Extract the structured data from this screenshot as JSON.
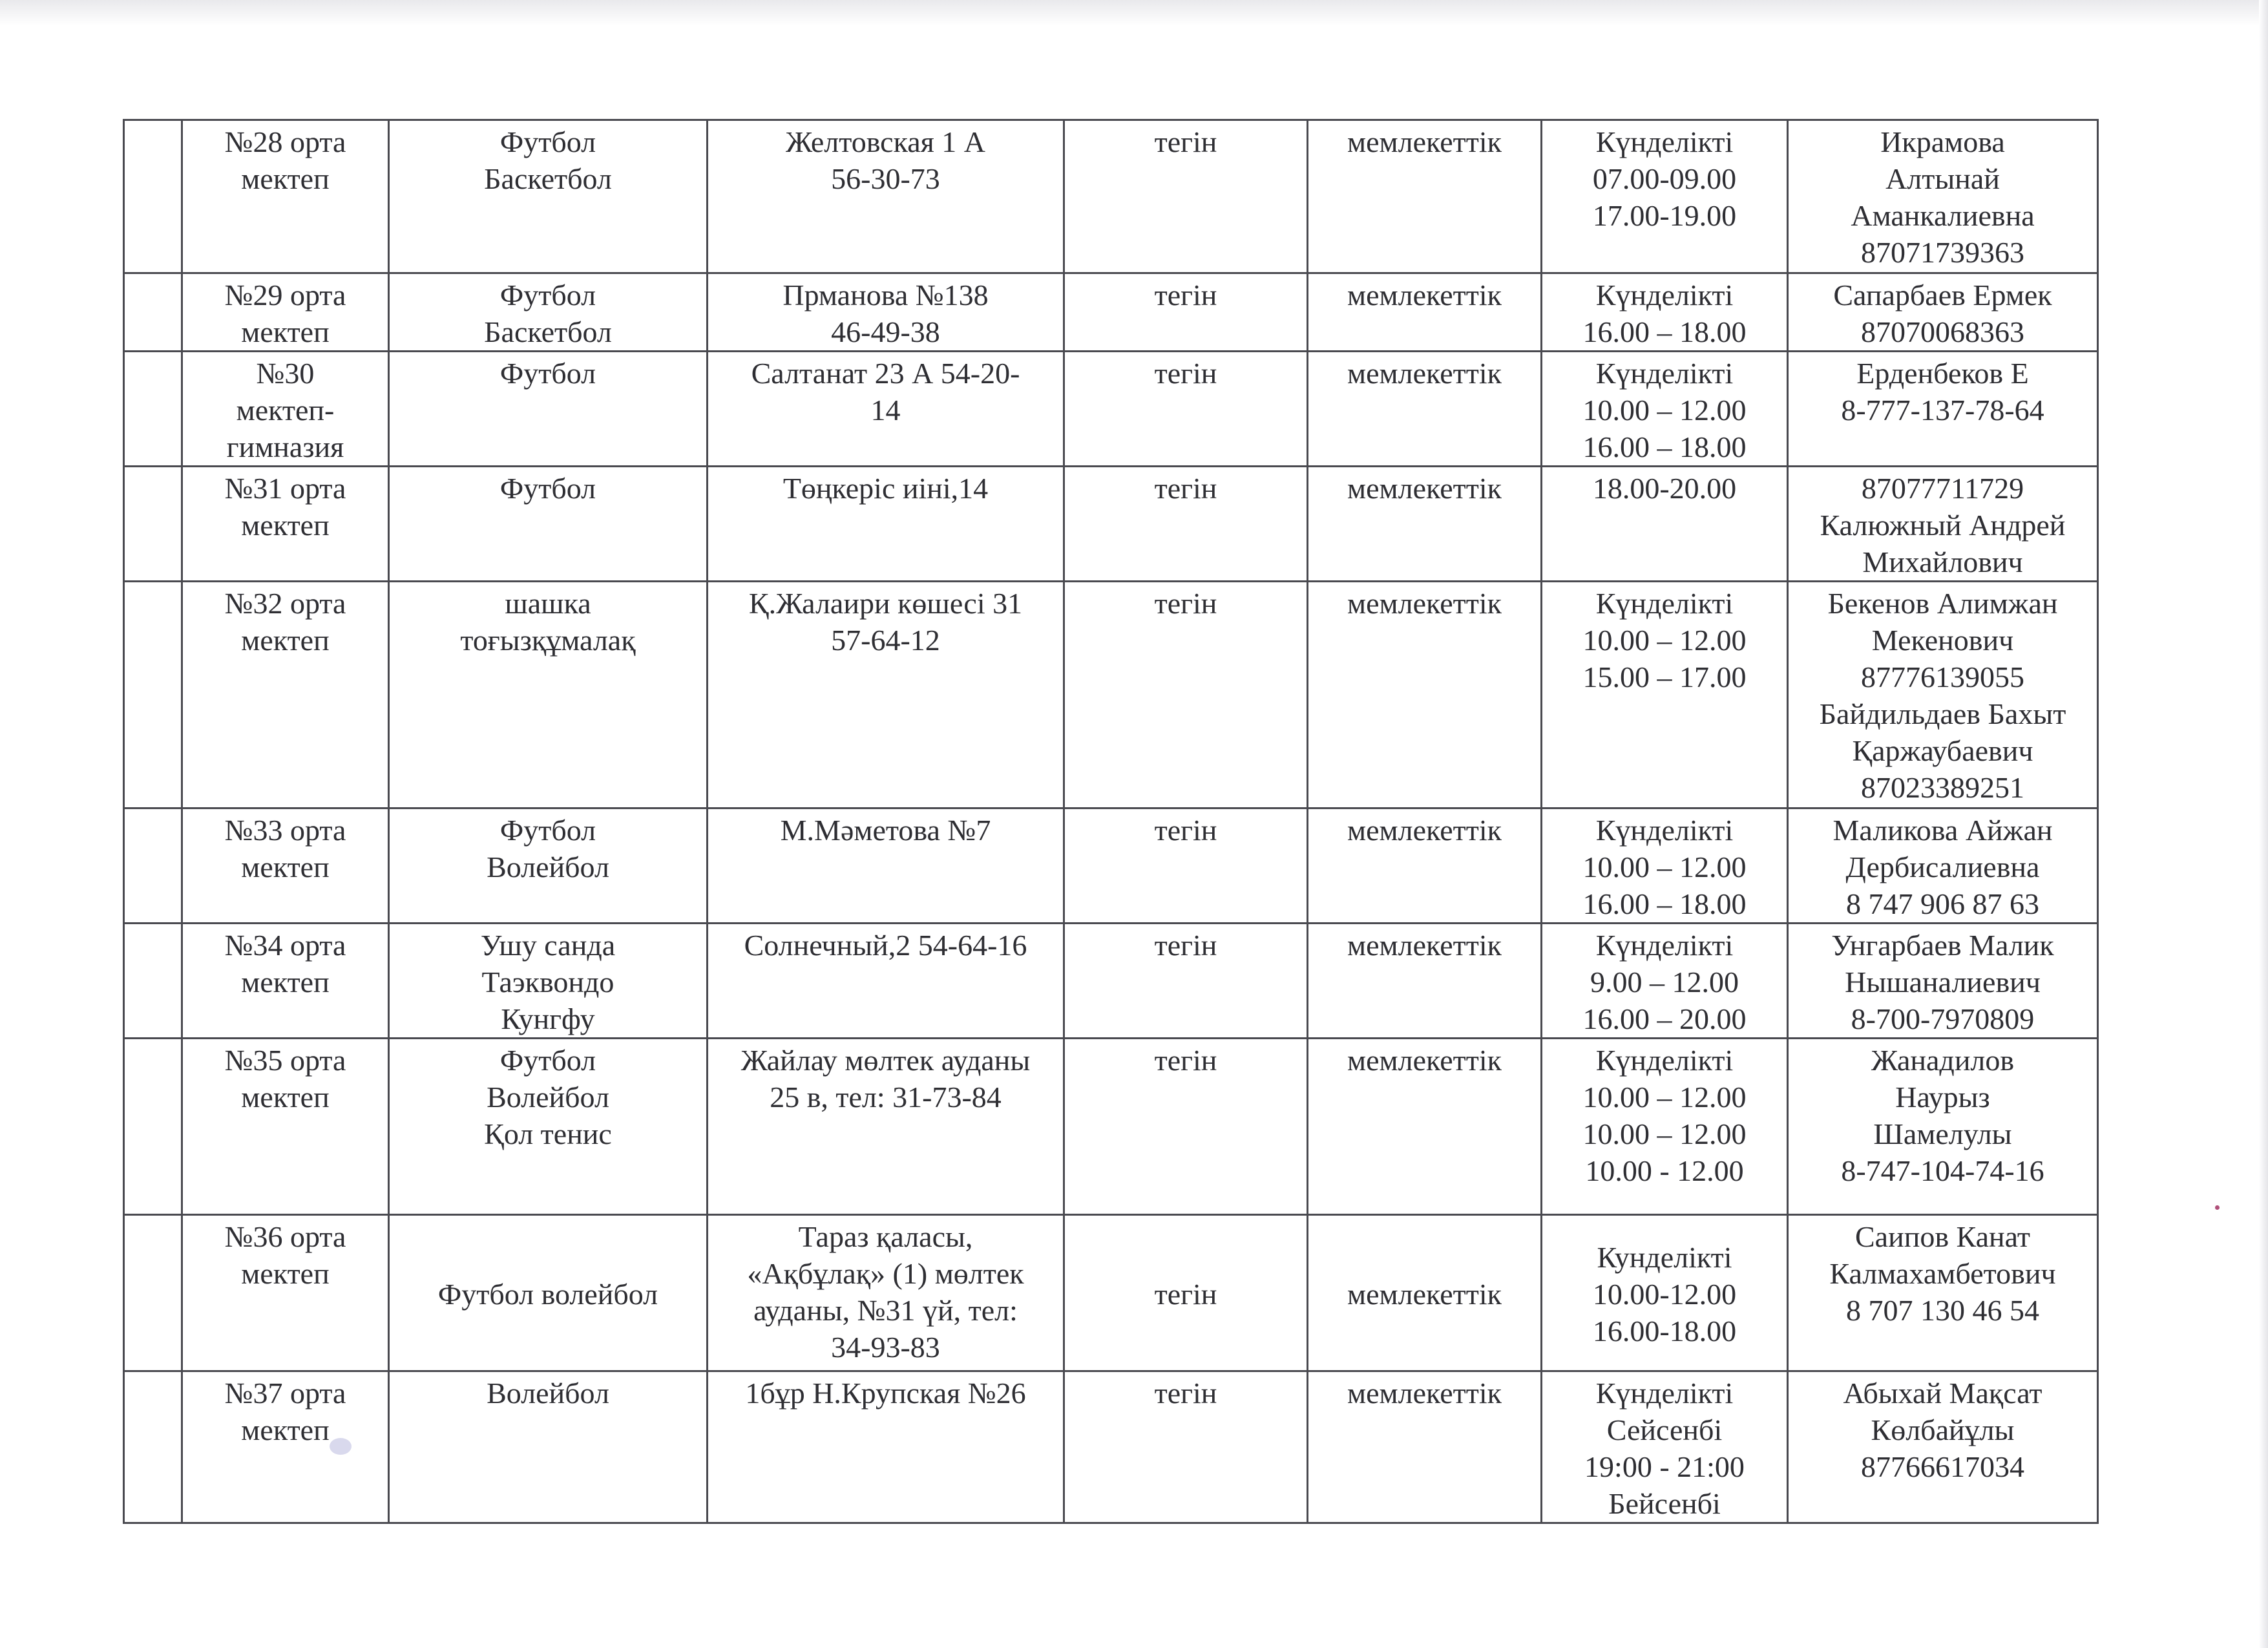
{
  "table": {
    "rows": [
      {
        "school": "№28 орта\nмектеп",
        "sport": "Футбол\nБаскетбол",
        "address": "Желтовская 1 А\n56-30-73",
        "fee": "тегін",
        "ownership": "мемлекеттік",
        "schedule": "Күнделікті\n07.00-09.00\n17.00-19.00",
        "contact": "Икрамова\nАлтынай\nАманкалиевна\n87071739363"
      },
      {
        "school": "№29 орта\nмектеп",
        "sport": "Футбол\nБаскетбол",
        "address": "Прманова  №138\n46-49-38",
        "fee": "тегін",
        "ownership": "мемлекеттік",
        "schedule": "Күнделікті\n16.00 – 18.00",
        "contact": "Сапарбаев Ермек\n87070068363"
      },
      {
        "school": "№30\nмектеп-\nгимназия",
        "sport": "Футбол",
        "address": "Салтанат 23 А 54-20-\n14",
        "fee": "тегін",
        "ownership": "мемлекеттік",
        "schedule": "Күнделікті\n10.00 – 12.00\n16.00 – 18.00",
        "contact": "Ерденбеков Е\n8-777-137-78-64"
      },
      {
        "school": "№31 орта\nмектеп",
        "sport": "Футбол",
        "address": "Төңкеріс иіні,14",
        "fee": "тегін",
        "ownership": "мемлекеттік",
        "schedule": "18.00-20.00",
        "contact": "87077711729\nКалюжный Андрей\nМихайлович"
      },
      {
        "school": "№32 орта\nмектеп",
        "sport": "шашка\nтоғызқұмалақ",
        "address": "Қ.Жалаири көшесі 31\n57-64-12",
        "fee": "тегін",
        "ownership": "мемлекеттік",
        "schedule": "Күнделікті\n10.00 – 12.00\n15.00 – 17.00",
        "contact": "Бекенов Алимжан\nМекенович\n87776139055\nБайдильдаев Бахыт\nҚаржаубаевич\n87023389251"
      },
      {
        "school": "№33 орта\nмектеп",
        "sport": "Футбол\nВолейбол",
        "address": "М.Мәметова №7",
        "fee": "тегін",
        "ownership": "мемлекеттік",
        "schedule": "Күнделікті\n10.00 – 12.00\n16.00 – 18.00",
        "contact": "Маликова Айжан\nДербисалиевна\n8 747 906 87 63"
      },
      {
        "school": "№34 орта\nмектеп",
        "sport": "Ушу санда\nТаэквондо\nКунгфу",
        "address": "Солнечный,2 54-64-16",
        "fee": "тегін",
        "ownership": "мемлекеттік",
        "schedule": "Күнделікті\n9.00 – 12.00\n16.00 – 20.00",
        "contact": "Унгарбаев Малик\nНышаналиевич\n8-700-7970809"
      },
      {
        "school": "№35 орта\nмектеп",
        "sport": "Футбол\nВолейбол\nҚол тенис",
        "address": "Жайлау мөлтек ауданы\n25 в, тел: 31-73-84",
        "fee": "тегін",
        "ownership": "мемлекеттік",
        "schedule": "Күнделікті\n10.00 – 12.00\n10.00 – 12.00\n10.00 -   12.00",
        "contact": "Жанадилов\nНаурыз\nШамелулы\n8-747-104-74-16"
      },
      {
        "school": "№36 орта\nмектеп",
        "sport": "Футбол волейбол",
        "address": "Тараз қаласы,\n«Ақбұлақ» (1) мөлтек\nауданы, №31 үй, тел:\n34-93-83",
        "fee": "тегін",
        "ownership": "мемлекеттік",
        "schedule": "Кунделікті\n10.00-12.00\n16.00-18.00",
        "contact": "Саипов    Канат\nКалмахамбетович\n8 707 130 46 54"
      },
      {
        "school": "№37 орта\nмектеп",
        "sport": "Волейбол",
        "address": "1бұр Н.Крупская №26",
        "fee": "тегін",
        "ownership": "мемлекеттік",
        "schedule": "Күнделікті\nСейсенбі\n19:00 - 21:00\nБейсенбі",
        "contact": "Абыхай Мақсат\nКөлбайұлы\n87766617034"
      }
    ]
  }
}
